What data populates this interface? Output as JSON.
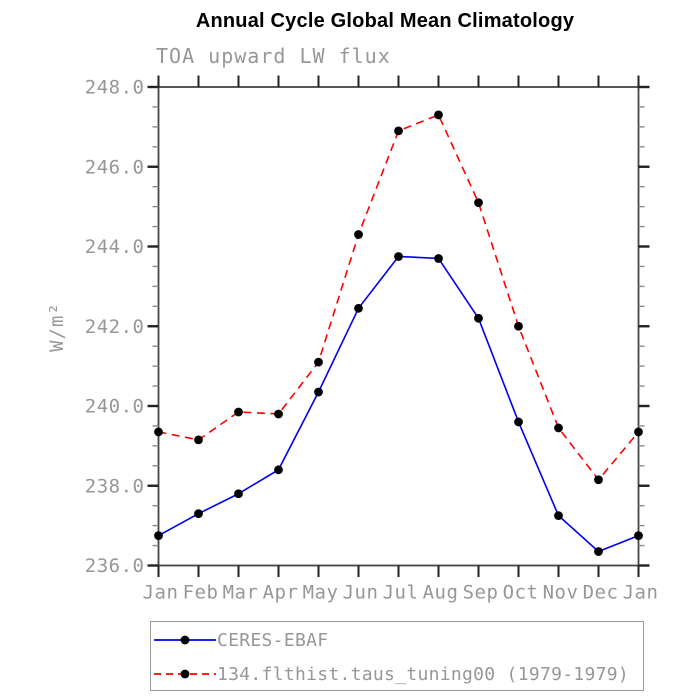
{
  "chart_data": {
    "type": "line",
    "title": "Annual Cycle Global Mean Climatology",
    "subtitle": "TOA upward LW flux",
    "ylabel": "W/m²",
    "xlabel": "",
    "categories": [
      "Jan",
      "Feb",
      "Mar",
      "Apr",
      "May",
      "Jun",
      "Jul",
      "Aug",
      "Sep",
      "Oct",
      "Nov",
      "Dec",
      "Jan"
    ],
    "ylim": [
      236.0,
      248.0
    ],
    "y_major_step": 2.0,
    "y_minor_step": 0.5,
    "y_tick_labels": [
      "236.0",
      "238.0",
      "240.0",
      "242.0",
      "244.0",
      "246.0",
      "248.0"
    ],
    "grid": false,
    "legend_position": "bottom-left",
    "series": [
      {
        "name": "CERES-EBAF",
        "color": "#0000ee",
        "line_style": "solid",
        "marker": "filled-circle",
        "marker_color": "#000000",
        "values": [
          236.75,
          237.3,
          237.8,
          238.4,
          240.35,
          242.45,
          243.75,
          243.7,
          242.2,
          239.6,
          237.25,
          236.35,
          236.75
        ]
      },
      {
        "name": "134.flthist.taus_tuning00 (1979-1979)",
        "color": "#ff0000",
        "line_style": "dashed",
        "marker": "filled-circle",
        "marker_color": "#000000",
        "values": [
          239.35,
          239.15,
          239.85,
          239.8,
          241.1,
          244.3,
          246.9,
          247.3,
          245.1,
          242.0,
          239.45,
          238.15,
          239.35
        ]
      }
    ],
    "colors": {
      "axis": "#222222",
      "frame": "#444444",
      "minor_tick": "#8a8a8a",
      "tick_label": "#979797",
      "title": "#000000",
      "subtitle": "#979797"
    }
  }
}
